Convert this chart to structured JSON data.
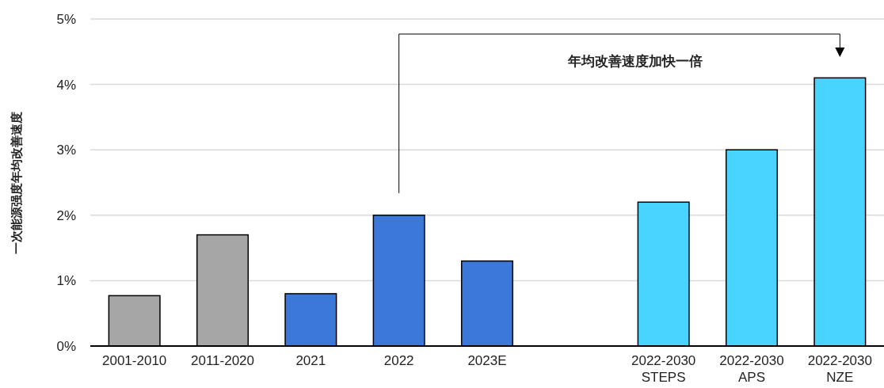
{
  "chart_data": {
    "type": "bar",
    "ylabel": "一次能源强度年均改善速度",
    "categories": [
      "2001-2010",
      "2011-2020",
      "2021",
      "2022",
      "2023E",
      null,
      "2022-2030\nSTEPS",
      "2022-2030\nAPS",
      "2022-2030\nNZE"
    ],
    "values": [
      0.77,
      1.7,
      0.8,
      2.0,
      1.3,
      null,
      2.2,
      3.0,
      4.1
    ],
    "colors": [
      "#a6a6a6",
      "#a6a6a6",
      "#3c78d8",
      "#3c78d8",
      "#3c78d8",
      null,
      "#48d4fe",
      "#48d4fe",
      "#48d4fe"
    ],
    "ylim": [
      0,
      5
    ],
    "yticks": [
      {
        "value": 0,
        "label": "0%"
      },
      {
        "value": 1,
        "label": "1%"
      },
      {
        "value": 2,
        "label": "2%"
      },
      {
        "value": 3,
        "label": "3%"
      },
      {
        "value": 4,
        "label": "4%"
      },
      {
        "value": 5,
        "label": "5%"
      }
    ],
    "grid": "y",
    "annotations": [
      "年均改善速度加快一倍"
    ]
  }
}
